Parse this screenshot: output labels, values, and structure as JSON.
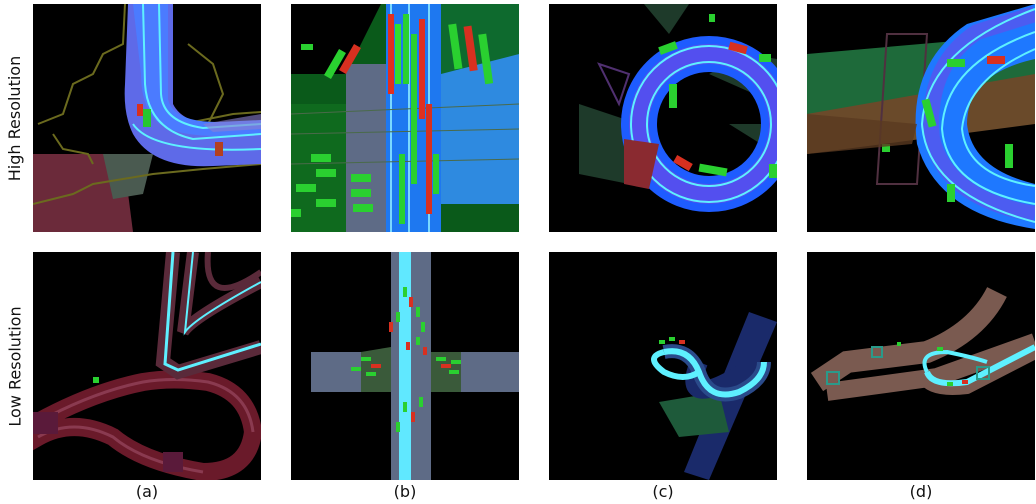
{
  "rows": {
    "high": "High Resolution",
    "low": "Low Resolution"
  },
  "captions": [
    "(a)",
    "(b)",
    "(c)",
    "(d)"
  ]
}
